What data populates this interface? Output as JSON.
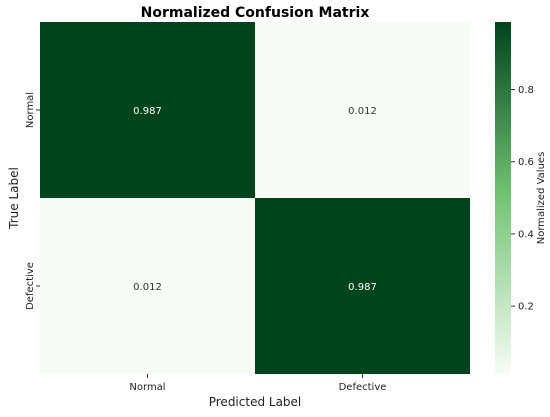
{
  "chart_data": {
    "type": "heatmap",
    "title": "Normalized Confusion Matrix",
    "xlabel": "Predicted Label",
    "ylabel": "True Label",
    "x_categories": [
      "Normal",
      "Defective"
    ],
    "y_categories": [
      "Normal",
      "Defective"
    ],
    "values": [
      [
        0.987,
        0.012
      ],
      [
        0.012,
        0.987
      ]
    ],
    "cell_labels": [
      [
        "0.987",
        "0.012"
      ],
      [
        "0.012",
        "0.987"
      ]
    ],
    "colorbar": {
      "label": "Normalized Values",
      "range": [
        0.012,
        0.987
      ],
      "ticks": [
        0.2,
        0.4,
        0.6,
        0.8
      ],
      "tick_labels": [
        "0.2",
        "0.4",
        "0.6",
        "0.8"
      ]
    },
    "colors": {
      "low": "#f7fcf5",
      "mid": "#74c476",
      "high": "#00441b",
      "text_on_dark": "#ffffff",
      "text_on_light": "#333333"
    }
  }
}
